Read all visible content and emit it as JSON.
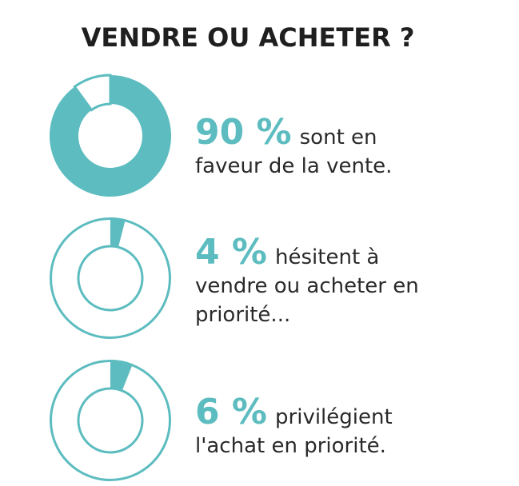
{
  "title": "VENDRE OU ACHETER ?",
  "colors": {
    "accent": "#5cbcbf",
    "text": "#2a2a2a",
    "title": "#1f1f1f"
  },
  "chart_data": {
    "type": "pie",
    "items": [
      {
        "value": 90,
        "percent_label": "90 %",
        "text_lines": [
          "sont  en",
          "faveur de la vente."
        ]
      },
      {
        "value": 4,
        "percent_label": "4 %",
        "text_lines": [
          "hésitent à",
          "vendre ou acheter en",
          "priorité..."
        ]
      },
      {
        "value": 6,
        "percent_label": "6 %",
        "text_lines": [
          "privilégient",
          "l'achat en priorité."
        ]
      }
    ]
  }
}
